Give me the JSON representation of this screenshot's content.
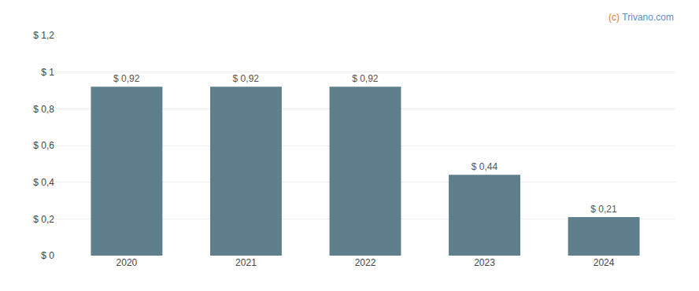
{
  "chart_data": {
    "type": "bar",
    "categories": [
      "2020",
      "2021",
      "2022",
      "2023",
      "2024"
    ],
    "values": [
      0.92,
      0.92,
      0.92,
      0.44,
      0.21
    ],
    "value_labels": [
      "$ 0,92",
      "$ 0,92",
      "$ 0,92",
      "$ 0,44",
      "$ 0,21"
    ],
    "data_labels": true,
    "color": "#5f7f8d",
    "ylim": [
      0,
      1.2
    ],
    "yticks": [
      {
        "value": 0,
        "label": "$ 0"
      },
      {
        "value": 0.2,
        "label": "$ 0,2"
      },
      {
        "value": 0.4,
        "label": "$ 0,4"
      },
      {
        "value": 0.6,
        "label": "$ 0,6"
      },
      {
        "value": 0.8,
        "label": "$ 0,8"
      },
      {
        "value": 1.0,
        "label": "$ 1"
      },
      {
        "value": 1.2,
        "label": "$ 1,2"
      }
    ],
    "grid": true,
    "annotations": [
      {
        "text": "(c)",
        "color": "#e07b39"
      },
      {
        "text": " Trivano.com",
        "color": "#5b8fc9"
      }
    ]
  }
}
